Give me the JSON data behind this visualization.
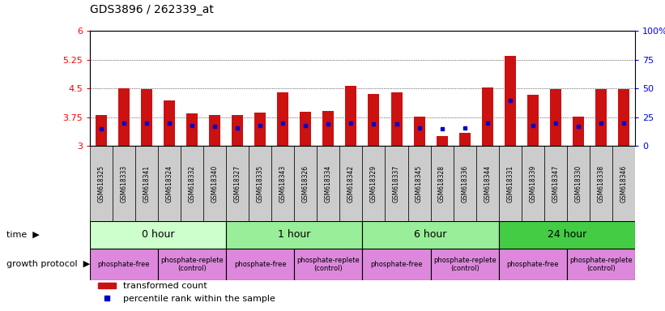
{
  "title": "GDS3896 / 262339_at",
  "samples": [
    "GSM618325",
    "GSM618333",
    "GSM618341",
    "GSM618324",
    "GSM618332",
    "GSM618340",
    "GSM618327",
    "GSM618335",
    "GSM618343",
    "GSM618326",
    "GSM618334",
    "GSM618342",
    "GSM618329",
    "GSM618337",
    "GSM618345",
    "GSM618328",
    "GSM618336",
    "GSM618344",
    "GSM618331",
    "GSM618339",
    "GSM618347",
    "GSM618330",
    "GSM618338",
    "GSM618346"
  ],
  "transformed_count": [
    3.82,
    4.5,
    4.48,
    4.2,
    3.85,
    3.82,
    3.82,
    3.87,
    4.4,
    3.9,
    3.92,
    4.57,
    4.37,
    4.4,
    3.78,
    3.27,
    3.35,
    4.53,
    5.35,
    4.35,
    4.48,
    3.77,
    4.48,
    4.48
  ],
  "percentile_rank": [
    15,
    20,
    20,
    20,
    18,
    17,
    16,
    18,
    20,
    18,
    19,
    20,
    19,
    19,
    16,
    15,
    16,
    20,
    40,
    18,
    20,
    17,
    20,
    20
  ],
  "ymin": 3,
  "ymax": 6,
  "yticks": [
    3,
    3.75,
    4.5,
    5.25,
    6
  ],
  "ytick_labels": [
    "3",
    "3.75",
    "4.5",
    "5.25",
    "6"
  ],
  "right_yticks": [
    0,
    25,
    50,
    75,
    100
  ],
  "right_ytick_labels": [
    "0",
    "25",
    "50",
    "75",
    "100%"
  ],
  "bar_color": "#cc1111",
  "marker_color": "#0000cc",
  "time_groups": [
    {
      "label": "0 hour",
      "start": 0,
      "end": 6,
      "color": "#ccffcc"
    },
    {
      "label": "1 hour",
      "start": 6,
      "end": 12,
      "color": "#99ee99"
    },
    {
      "label": "6 hour",
      "start": 12,
      "end": 18,
      "color": "#99ee99"
    },
    {
      "label": "24 hour",
      "start": 18,
      "end": 24,
      "color": "#44cc44"
    }
  ],
  "protocol_groups": [
    {
      "label": "phosphate-free",
      "start": 0,
      "end": 3
    },
    {
      "label": "phosphate-replete\n(control)",
      "start": 3,
      "end": 6
    },
    {
      "label": "phosphate-free",
      "start": 6,
      "end": 9
    },
    {
      "label": "phosphate-replete\n(control)",
      "start": 9,
      "end": 12
    },
    {
      "label": "phosphate-free",
      "start": 12,
      "end": 15
    },
    {
      "label": "phosphate-replete\n(control)",
      "start": 15,
      "end": 18
    },
    {
      "label": "phosphate-free",
      "start": 18,
      "end": 21
    },
    {
      "label": "phosphate-replete\n(control)",
      "start": 21,
      "end": 24
    }
  ],
  "protocol_color": "#dd88dd",
  "bg_color": "#ffffff",
  "grid_color": "#000000",
  "sample_bg_color": "#cccccc",
  "label_fontsize": 8,
  "tick_fontsize": 8,
  "bar_width": 0.5
}
